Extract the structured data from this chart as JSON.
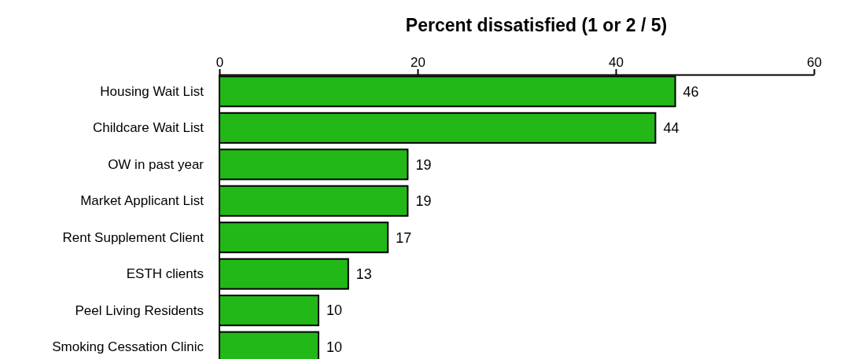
{
  "chart_data": {
    "type": "bar",
    "orientation": "horizontal",
    "title": "Percent dissatisfied (1 or 2 / 5)",
    "categories": [
      "Housing Wait List",
      "Childcare Wait List",
      "OW in past year",
      "Market Applicant List",
      "Rent Supplement Client",
      "ESTH clients",
      "Peel Living Residents",
      "Smoking Cessation Clinic"
    ],
    "values": [
      46,
      44,
      19,
      19,
      17,
      13,
      10,
      10
    ],
    "color": "#22b818",
    "xlim": [
      0,
      60
    ],
    "xticks": [
      0,
      20,
      40,
      60
    ],
    "data_labels": true
  }
}
